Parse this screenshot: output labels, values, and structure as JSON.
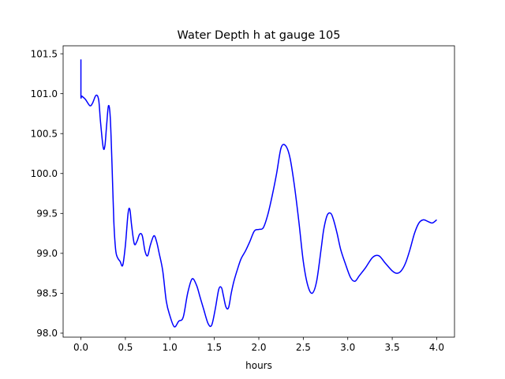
{
  "chart_data": {
    "type": "line",
    "title": "Water Depth h at gauge 105",
    "xlabel": "hours",
    "ylabel": "",
    "xlim": [
      -0.2,
      4.2
    ],
    "ylim": [
      97.95,
      101.6
    ],
    "xticks": [
      0.0,
      0.5,
      1.0,
      1.5,
      2.0,
      2.5,
      3.0,
      3.5,
      4.0
    ],
    "xtick_labels": [
      "0.0",
      "0.5",
      "1.0",
      "1.5",
      "2.0",
      "2.5",
      "3.0",
      "3.5",
      "4.0"
    ],
    "yticks": [
      98.0,
      98.5,
      99.0,
      99.5,
      100.0,
      100.5,
      101.0,
      101.5
    ],
    "ytick_labels": [
      "98.0",
      "98.5",
      "99.0",
      "99.5",
      "100.0",
      "100.5",
      "101.0",
      "101.5"
    ],
    "grid": false,
    "series": [
      {
        "name": "",
        "color": "#0000ff",
        "x": [
          0.0,
          0.0,
          0.01,
          0.05,
          0.1,
          0.13,
          0.17,
          0.2,
          0.22,
          0.25,
          0.27,
          0.29,
          0.31,
          0.33,
          0.35,
          0.37,
          0.39,
          0.41,
          0.44,
          0.47,
          0.5,
          0.53,
          0.55,
          0.57,
          0.6,
          0.63,
          0.66,
          0.69,
          0.72,
          0.75,
          0.78,
          0.82,
          0.85,
          0.88,
          0.92,
          0.96,
          1.0,
          1.05,
          1.1,
          1.15,
          1.2,
          1.25,
          1.3,
          1.34,
          1.38,
          1.43,
          1.47,
          1.51,
          1.55,
          1.58,
          1.6,
          1.63,
          1.66,
          1.69,
          1.72,
          1.76,
          1.8,
          1.85,
          1.9,
          1.95,
          2.0,
          2.05,
          2.1,
          2.15,
          2.2,
          2.25,
          2.3,
          2.35,
          2.4,
          2.45,
          2.5,
          2.55,
          2.6,
          2.65,
          2.7,
          2.73,
          2.77,
          2.81,
          2.84,
          2.88,
          2.92,
          2.97,
          3.03,
          3.08,
          3.13,
          3.2,
          3.28,
          3.35,
          3.42,
          3.5,
          3.55,
          3.6,
          3.65,
          3.7,
          3.75,
          3.8,
          3.85,
          3.9,
          3.95,
          4.0
        ],
        "y": [
          101.43,
          100.98,
          100.97,
          100.93,
          100.85,
          100.88,
          100.98,
          100.92,
          100.65,
          100.33,
          100.35,
          100.62,
          100.85,
          100.7,
          100.1,
          99.4,
          99.05,
          98.95,
          98.9,
          98.85,
          99.1,
          99.5,
          99.55,
          99.35,
          99.12,
          99.15,
          99.24,
          99.22,
          99.03,
          98.97,
          99.1,
          99.22,
          99.15,
          99.0,
          98.78,
          98.4,
          98.22,
          98.08,
          98.15,
          98.2,
          98.5,
          98.68,
          98.6,
          98.45,
          98.3,
          98.12,
          98.1,
          98.3,
          98.55,
          98.57,
          98.48,
          98.33,
          98.32,
          98.5,
          98.65,
          98.8,
          98.93,
          99.03,
          99.15,
          99.28,
          99.3,
          99.32,
          99.48,
          99.72,
          100.0,
          100.32,
          100.35,
          100.2,
          99.85,
          99.4,
          98.9,
          98.6,
          98.5,
          98.65,
          99.05,
          99.3,
          99.48,
          99.5,
          99.42,
          99.25,
          99.05,
          98.88,
          98.7,
          98.65,
          98.72,
          98.82,
          98.95,
          98.97,
          98.88,
          98.78,
          98.75,
          98.78,
          98.88,
          99.05,
          99.25,
          99.38,
          99.42,
          99.4,
          99.38,
          99.42
        ]
      }
    ]
  }
}
